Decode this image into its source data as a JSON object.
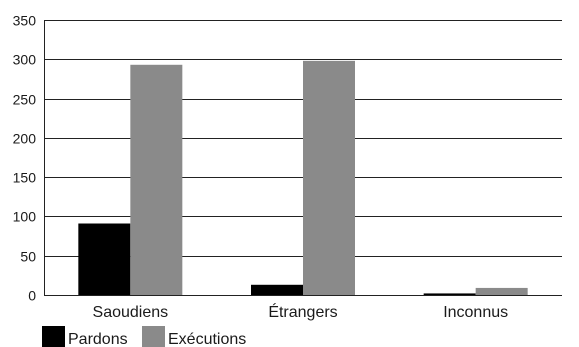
{
  "chart_data": {
    "type": "bar",
    "categories": [
      "Saoudiens",
      "Étrangers",
      "Inconnus"
    ],
    "series": [
      {
        "name": "Pardons",
        "values": [
          91,
          13,
          2
        ],
        "color": "#000000"
      },
      {
        "name": "Exécutions",
        "values": [
          293,
          298,
          9
        ],
        "color": "#8a8a8a"
      }
    ],
    "title": "",
    "xlabel": "",
    "ylabel": "",
    "ylim": [
      0,
      350
    ],
    "yticks": [
      0,
      50,
      100,
      150,
      200,
      250,
      300,
      350
    ],
    "grid": true,
    "legend": "bottom-left"
  }
}
